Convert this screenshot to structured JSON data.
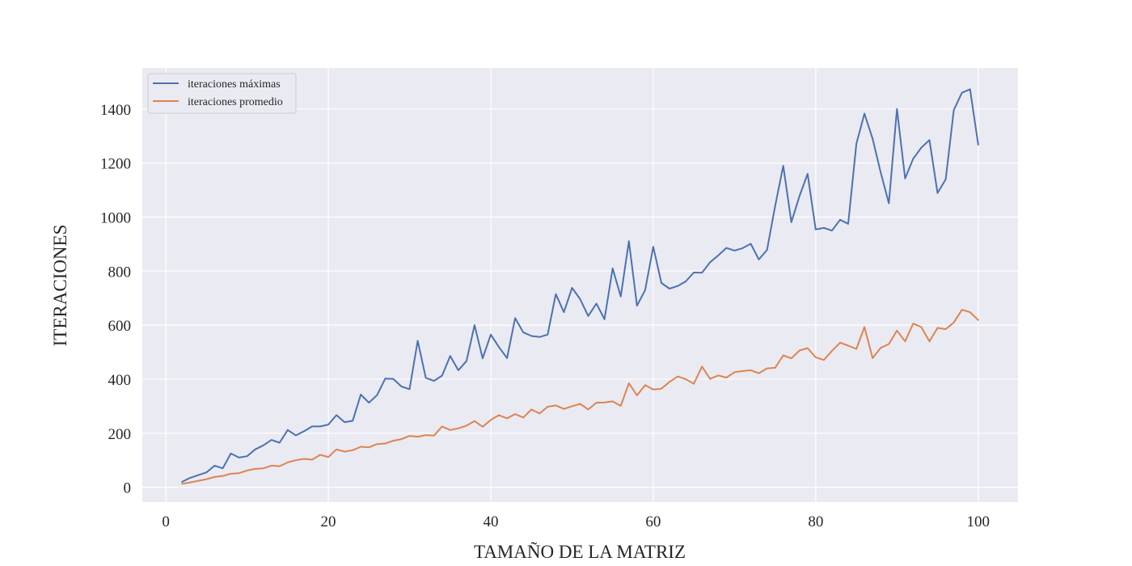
{
  "chart_data": {
    "type": "line",
    "title": "",
    "xlabel": "TAMAÑO DE LA MATRIZ",
    "ylabel": "ITERACIONES",
    "xlim": [
      -2.9,
      104.9
    ],
    "ylim": [
      -55,
      1552
    ],
    "xticks": [
      0,
      20,
      40,
      60,
      80,
      100
    ],
    "yticks": [
      0,
      200,
      400,
      600,
      800,
      1000,
      1200,
      1400
    ],
    "grid": true,
    "legend_position": "top-left",
    "background": "#EAEAF2",
    "grid_color": "#FFFFFF",
    "x_start": 2,
    "series": [
      {
        "name": "iteraciones máximas",
        "color": "#4C72B0",
        "values": [
          20,
          35,
          45,
          55,
          80,
          70,
          125,
          110,
          115,
          140,
          155,
          175,
          165,
          212,
          192,
          207,
          225,
          225,
          232,
          267,
          241,
          246,
          343,
          313,
          341,
          402,
          401,
          373,
          363,
          542,
          405,
          394,
          413,
          486,
          433,
          467,
          600,
          477,
          565,
          519,
          478,
          626,
          573,
          560,
          556,
          565,
          715,
          648,
          738,
          696,
          634,
          680,
          622,
          810,
          706,
          911,
          672,
          730,
          890,
          756,
          735,
          745,
          762,
          795,
          794,
          833,
          858,
          886,
          876,
          885,
          901,
          843,
          878,
          1040,
          1190,
          981,
          1078,
          1160,
          954,
          960,
          950,
          990,
          975,
          1271,
          1383,
          1290,
          1165,
          1051,
          1400,
          1143,
          1216,
          1257,
          1285,
          1089,
          1140,
          1396,
          1460,
          1473,
          1268
        ]
      },
      {
        "name": "iteraciones promedio",
        "color": "#DD8452",
        "values": [
          13,
          18,
          24,
          30,
          38,
          42,
          50,
          52,
          62,
          68,
          70,
          80,
          78,
          92,
          100,
          105,
          102,
          120,
          112,
          140,
          132,
          137,
          150,
          148,
          160,
          162,
          172,
          178,
          190,
          187,
          193,
          191,
          225,
          212,
          218,
          228,
          245,
          224,
          249,
          267,
          255,
          271,
          258,
          288,
          273,
          298,
          303,
          290,
          300,
          309,
          288,
          313,
          314,
          318,
          301,
          385,
          340,
          378,
          362,
          365,
          390,
          410,
          400,
          383,
          447,
          401,
          414,
          406,
          426,
          430,
          433,
          422,
          440,
          442,
          488,
          477,
          506,
          515,
          481,
          471,
          505,
          535,
          524,
          512,
          593,
          478,
          516,
          530,
          580,
          540,
          606,
          593,
          540,
          590,
          585,
          610,
          657,
          648,
          619
        ]
      }
    ]
  }
}
